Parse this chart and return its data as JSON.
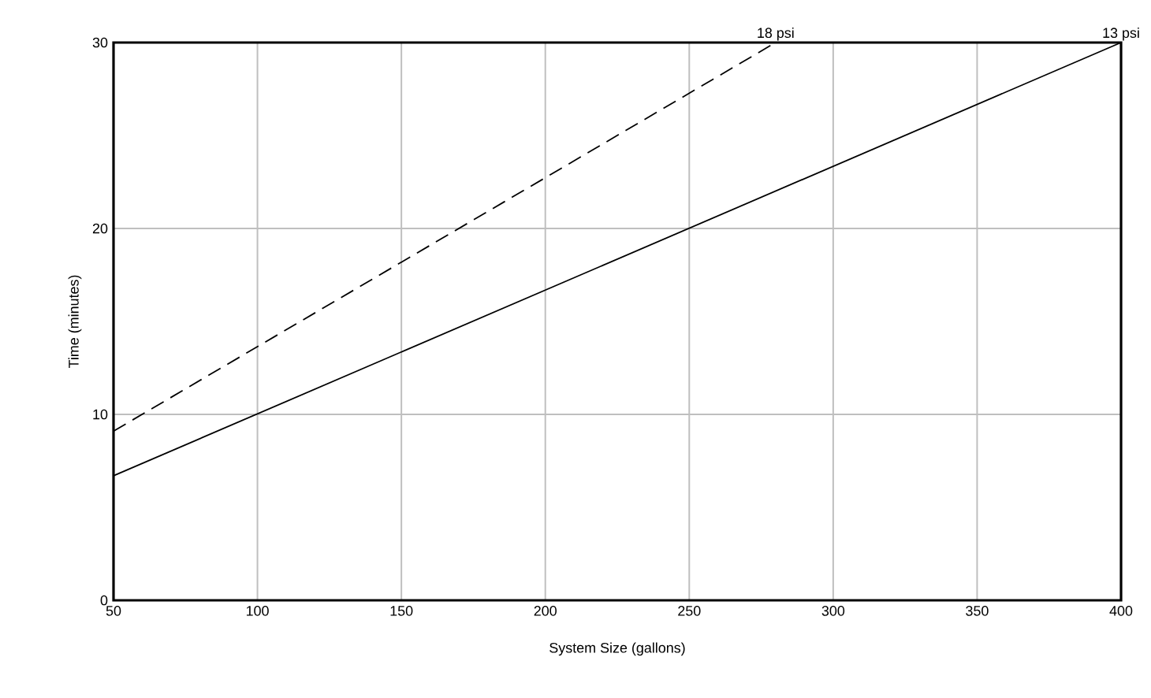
{
  "chart_data": {
    "type": "line",
    "xlabel": "System Size (gallons)",
    "ylabel": "Time (minutes)",
    "series": [
      {
        "color": "#000000",
        "line_style": "dashed",
        "x": [
          50,
          280
        ],
        "values": [
          9.1,
          30
        ]
      },
      {
        "color": "#000000",
        "line_style": "solid",
        "x": [
          50,
          400
        ],
        "values": [
          6.7,
          30
        ]
      }
    ],
    "annotations": [
      {
        "text": "18 psi",
        "x": 280,
        "y": 30
      },
      {
        "text": "13 psi",
        "x": 400,
        "y": 30
      }
    ],
    "xlim": [
      50,
      400
    ],
    "ylim": [
      0,
      30
    ],
    "xticks": [
      50,
      100,
      150,
      200,
      250,
      300,
      350,
      400
    ],
    "yticks": [
      0,
      10,
      20,
      30
    ],
    "grid": true,
    "marker": "none"
  }
}
